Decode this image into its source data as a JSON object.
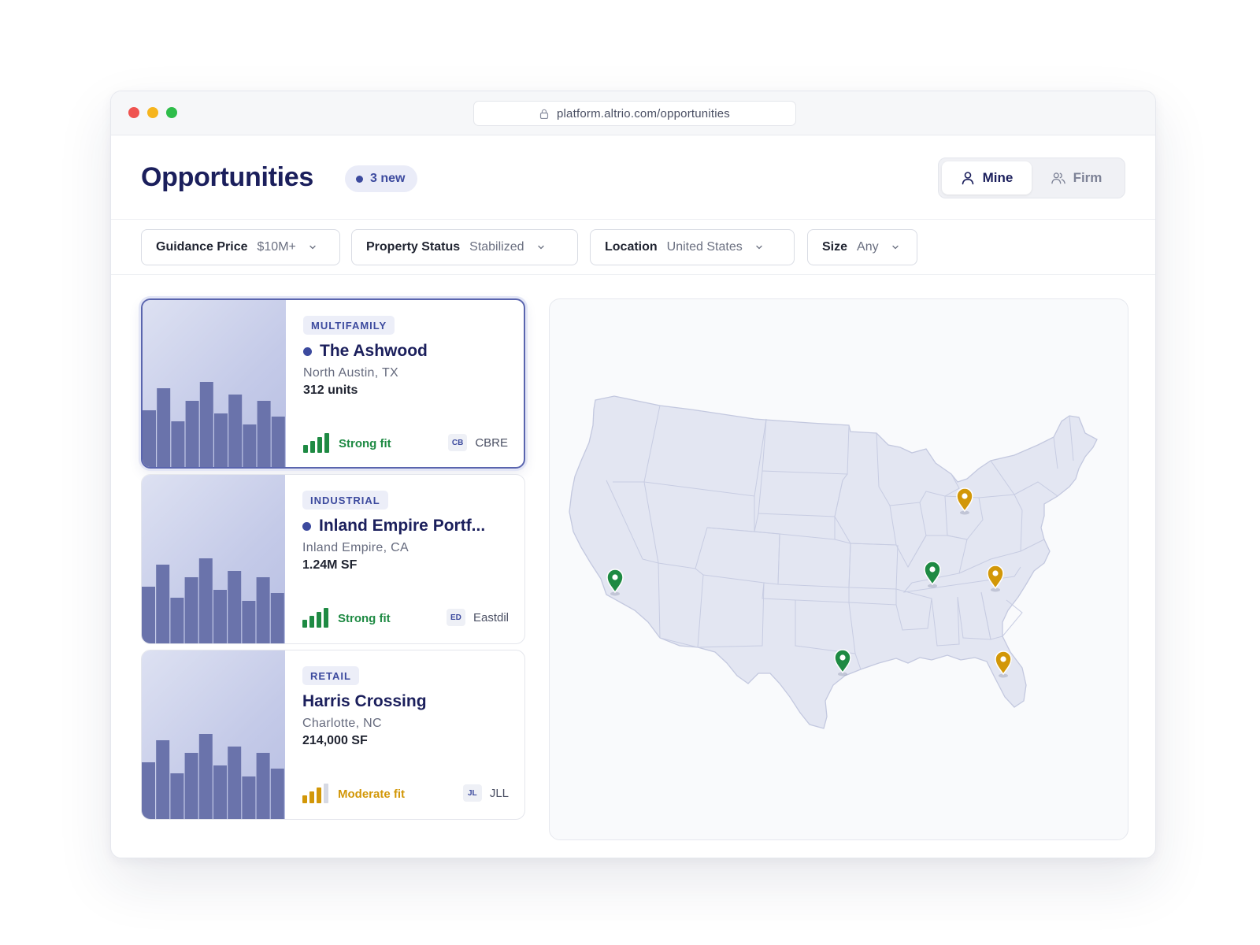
{
  "browser": {
    "url": "platform.altrio.com/opportunities"
  },
  "header": {
    "title": "Opportunities",
    "new_badge": "3 new",
    "toggle": {
      "mine_label": "Mine",
      "firm_label": "Firm",
      "selected": "Mine"
    }
  },
  "filters": [
    {
      "label": "Guidance Price",
      "value": "$10M+"
    },
    {
      "label": "Property Status",
      "value": "Stabilized"
    },
    {
      "label": "Location",
      "value": "United States"
    },
    {
      "label": "Size",
      "value": "Any"
    }
  ],
  "opportunities": [
    {
      "type": "MULTIFAMILY",
      "name": "The Ashwood",
      "unread": true,
      "location": "North Austin, TX",
      "metric": "312 units",
      "fit": "Strong fit",
      "fit_level": 4,
      "broker_logo": "CB",
      "broker": "CBRE",
      "selected": true
    },
    {
      "type": "INDUSTRIAL",
      "name": "Inland Empire Portf...",
      "unread": true,
      "location": "Inland Empire, CA",
      "metric": "1.24M SF",
      "fit": "Strong fit",
      "fit_level": 4,
      "broker_logo": "ED",
      "broker": "Eastdil",
      "selected": false
    },
    {
      "type": "RETAIL",
      "name": "Harris Crossing",
      "unread": false,
      "location": "Charlotte, NC",
      "metric": "214,000 SF",
      "fit": "Moderate fit",
      "fit_level": 3,
      "broker_logo": "JL",
      "broker": "JLL",
      "selected": false
    }
  ],
  "colors": {
    "strong_fit": "#1e8a43",
    "moderate_fit": "#d29708",
    "accent": "#3c4a9e",
    "title": "#1b1f5c"
  },
  "map": {
    "region": "United States",
    "pins": [
      {
        "place": "Southern California",
        "fit": "strong"
      },
      {
        "place": "Texas",
        "fit": "strong"
      },
      {
        "place": "Tennessee",
        "fit": "strong"
      },
      {
        "place": "Michigan/Ohio",
        "fit": "moderate"
      },
      {
        "place": "North Carolina",
        "fit": "moderate"
      },
      {
        "place": "Florida",
        "fit": "moderate"
      }
    ]
  },
  "icons": {
    "lock": "lock-icon",
    "user": "user-icon",
    "users": "users-icon",
    "chevron": "chevron-down-icon",
    "pin": "map-pin-icon"
  }
}
